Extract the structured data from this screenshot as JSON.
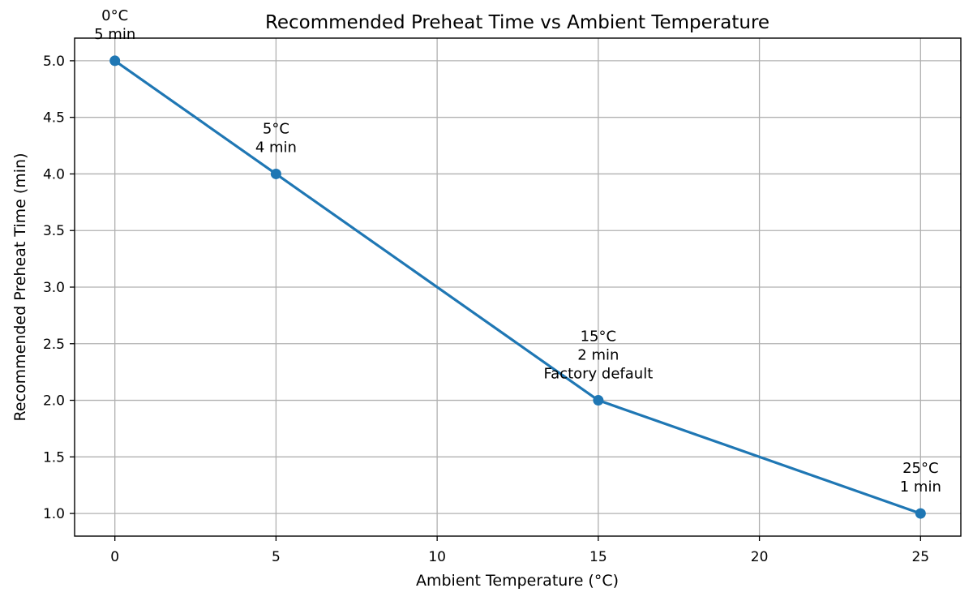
{
  "chart_data": {
    "type": "line",
    "title": "Recommended Preheat Time vs Ambient Temperature",
    "xlabel": "Ambient Temperature (°C)",
    "ylabel": "Recommended Preheat Time (min)",
    "xlim": [
      -1.25,
      26.25
    ],
    "ylim": [
      0.8,
      5.2
    ],
    "grid": true,
    "x_ticks": [
      0,
      5,
      10,
      15,
      20,
      25
    ],
    "x_tick_labels": [
      "0",
      "5",
      "10",
      "15",
      "20",
      "25"
    ],
    "y_ticks": [
      1.0,
      1.5,
      2.0,
      2.5,
      3.0,
      3.5,
      4.0,
      4.5,
      5.0
    ],
    "y_tick_labels": [
      "1.0",
      "1.5",
      "2.0",
      "2.5",
      "3.0",
      "3.5",
      "4.0",
      "4.5",
      "5.0"
    ],
    "series": [
      {
        "name": "Recommended Preheat Time",
        "color": "#1f77b4",
        "x": [
          0,
          5,
          15,
          25
        ],
        "y": [
          5,
          4,
          2,
          1
        ]
      }
    ],
    "annotations": [
      {
        "x": 0,
        "y": 5,
        "lines": [
          "0°C",
          "5 min"
        ]
      },
      {
        "x": 5,
        "y": 4,
        "lines": [
          "5°C",
          "4 min"
        ]
      },
      {
        "x": 15,
        "y": 2,
        "lines": [
          "15°C",
          "2 min",
          "Factory default"
        ]
      },
      {
        "x": 25,
        "y": 1,
        "lines": [
          "25°C",
          "1 min"
        ]
      }
    ]
  }
}
